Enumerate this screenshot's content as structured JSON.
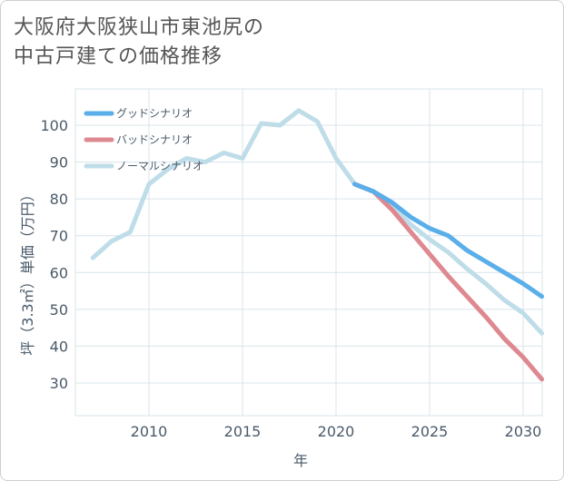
{
  "title": {
    "line1": "大阪府大阪狭山市東池尻の",
    "line2": "中古戸建ての価格推移"
  },
  "chart_data": {
    "type": "line",
    "xlabel": "年",
    "ylabel": "坪（3.3㎡）単価（万円）",
    "xlim": [
      2006.5,
      2031
    ],
    "ylim": [
      22,
      107
    ],
    "xticks": [
      2010,
      2015,
      2020,
      2025,
      2030
    ],
    "yticks": [
      30,
      40,
      50,
      60,
      70,
      80,
      90,
      100
    ],
    "grid": true,
    "legend_position": "top-left",
    "series": [
      {
        "name": "グッドシナリオ",
        "color": "#5aaeea",
        "x": [
          2021,
          2022,
          2023,
          2024,
          2025,
          2026,
          2027,
          2028,
          2029,
          2030,
          2031
        ],
        "y": [
          84,
          82,
          79,
          75,
          72,
          70,
          66,
          63,
          60,
          57,
          53.5
        ]
      },
      {
        "name": "バッドシナリオ",
        "color": "#de8890",
        "x": [
          2021,
          2022,
          2023,
          2024,
          2025,
          2026,
          2027,
          2028,
          2029,
          2030,
          2031
        ],
        "y": [
          84,
          82,
          77,
          71,
          65,
          59,
          53.5,
          48,
          42,
          37,
          31
        ]
      },
      {
        "name": "ノーマルシナリオ",
        "color": "#bfdde9",
        "x": [
          2007,
          2008,
          2009,
          2010,
          2011,
          2012,
          2013,
          2014,
          2015,
          2016,
          2017,
          2018,
          2019,
          2020,
          2021,
          2022,
          2023,
          2024,
          2025,
          2026,
          2027,
          2028,
          2029,
          2030,
          2031
        ],
        "y": [
          64,
          68.5,
          71,
          84,
          88,
          91,
          90,
          92.5,
          91,
          100.5,
          100,
          104,
          101,
          91,
          84,
          82,
          78,
          73,
          69,
          65.5,
          61,
          57,
          52.5,
          49,
          43.5
        ]
      }
    ]
  }
}
